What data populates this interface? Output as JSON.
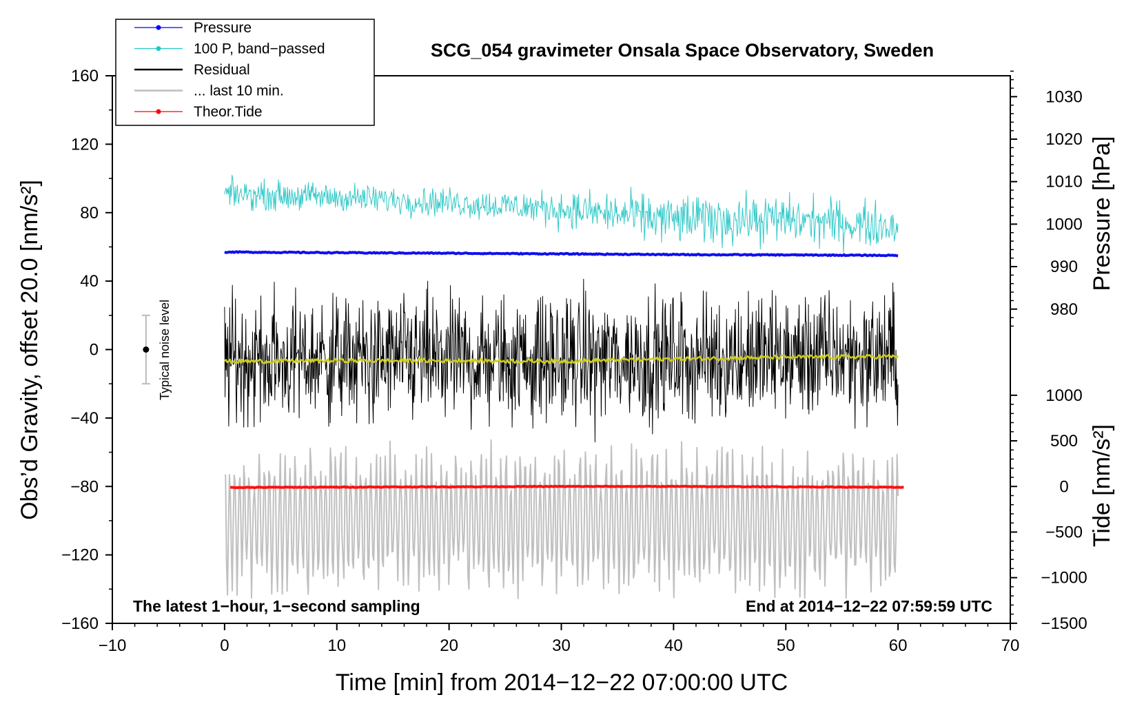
{
  "chart_data": {
    "type": "line",
    "title": "SCG_054 gravimeter Onsala Space Observatory, Sweden",
    "xlabel": "Time [min] from 2014−12−22 07:00:00 UTC",
    "ylabel": "Obs’d Gravity, offset 20.0 [nm/s²]",
    "ylabel_right_top": "Pressure [hPa]",
    "ylabel_right_bottom": "Tide [nm/s²]",
    "xlim": [
      -10,
      70
    ],
    "ylim": [
      -160,
      160
    ],
    "xticks": [
      -10,
      0,
      10,
      20,
      30,
      40,
      50,
      60,
      70
    ],
    "xtick_labels": [
      "−10",
      "0",
      "10",
      "20",
      "30",
      "40",
      "50",
      "60",
      "70"
    ],
    "yticks": [
      -160,
      -120,
      -80,
      -40,
      0,
      40,
      80,
      120,
      160
    ],
    "ytick_labels": [
      "−160",
      "−120",
      "−80",
      "−40",
      "0",
      "40",
      "80",
      "120",
      "160"
    ],
    "pressure_axis": {
      "ticks": [
        980,
        990,
        1000,
        1010,
        1020,
        1030
      ],
      "tick_labels": [
        "980",
        "990",
        "1000",
        "1010",
        "1020",
        "1030"
      ],
      "gravity_at_1000": 73.3,
      "gravity_per_hpa": 2.483
    },
    "tide_axis": {
      "ticks": [
        -1500,
        -1000,
        -500,
        0,
        500,
        1000
      ],
      "tick_labels": [
        "−1500",
        "−1000",
        "−500",
        "0",
        "500",
        "1000"
      ],
      "gravity_at_0": -80.0,
      "gravity_per_unit": 0.0533
    },
    "legend": {
      "position": "top-left",
      "entries": [
        {
          "label": "Pressure",
          "color": "#0000ff",
          "marker": true
        },
        {
          "label": "100 P, band−passed",
          "color": "#20c8c8",
          "marker": true
        },
        {
          "label": "Residual",
          "color": "#000000",
          "marker": false
        },
        {
          "label": "... last 10 min.",
          "color": "#bbbbbb",
          "marker": false
        },
        {
          "label": "Theor.Tide",
          "color": "#ff0000",
          "marker": true
        }
      ]
    },
    "series": [
      {
        "name": "Pressure",
        "color": "#1010ee",
        "kind": "trend",
        "x": [
          0,
          10,
          20,
          30,
          40,
          50,
          60
        ],
        "y": [
          57.0,
          56.6,
          56.3,
          55.9,
          55.5,
          55.3,
          55.0
        ],
        "noise": 0.3
      },
      {
        "name": "100 P, band−passed",
        "color": "#30c8c8",
        "kind": "noisy",
        "x": [
          0,
          10,
          20,
          30,
          40,
          50,
          60
        ],
        "y": [
          91,
          89,
          86,
          82,
          76,
          76,
          72
        ],
        "amplitude": [
          4,
          4,
          4,
          5,
          7,
          7,
          6
        ]
      },
      {
        "name": "Residual",
        "color": "#000000",
        "kind": "noisy",
        "x": [
          0,
          10,
          20,
          30,
          40,
          50,
          60
        ],
        "y": [
          -6,
          -6,
          -6,
          -6,
          -5,
          -4,
          -4
        ],
        "amplitude": [
          18,
          18,
          18,
          18,
          18,
          18,
          18
        ]
      },
      {
        "name": "Residual smoothed",
        "color": "#cccc22",
        "kind": "trend",
        "x": [
          0,
          10,
          20,
          30,
          40,
          50,
          60
        ],
        "y": [
          -7,
          -6.5,
          -6.5,
          -6.8,
          -5.5,
          -4.5,
          -4
        ],
        "noise": 1.2
      },
      {
        "name": "... last 10 min.",
        "color": "#c0c0c0",
        "kind": "oscillation",
        "x": [
          0,
          60
        ],
        "y": [
          -100,
          -100
        ],
        "amplitude": [
          35,
          35
        ]
      },
      {
        "name": "Theor.Tide",
        "color": "#ff1010",
        "kind": "trend",
        "x": [
          0.5,
          10,
          20,
          30,
          40,
          50,
          60.5
        ],
        "y": [
          -80.6,
          -80.4,
          -80.2,
          -80.0,
          -80.0,
          -80.2,
          -80.5
        ],
        "noise": 0.2
      }
    ],
    "annotations": {
      "noise_label": "Typical noise level",
      "noise_bar": {
        "x": -7,
        "y": 0,
        "low": -20,
        "high": 20
      },
      "bottom_left": "The latest 1−hour, 1−second sampling",
      "bottom_right": "End at 2014−12−22 07:59:59 UTC"
    }
  }
}
